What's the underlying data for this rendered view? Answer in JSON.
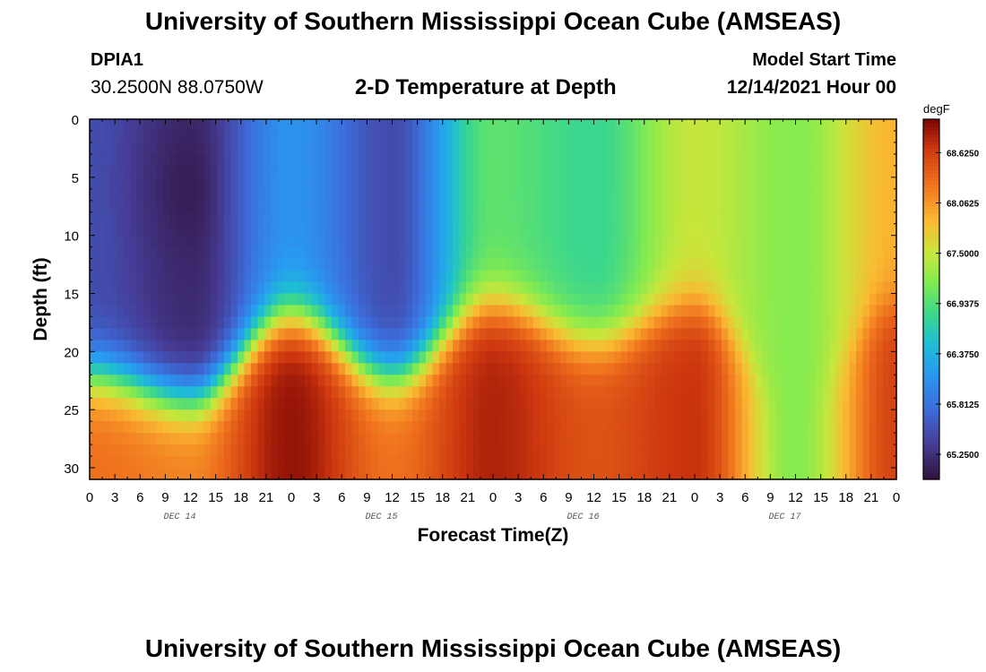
{
  "header": {
    "title": "University of Southern Mississippi Ocean Cube (AMSEAS)",
    "station": "DPIA1",
    "coords": "30.2500N  88.0750W",
    "subtitle": "2-D Temperature at Depth",
    "model_start_label": "Model Start Time",
    "model_start_value": "12/14/2021 Hour 00"
  },
  "footer": {
    "title": "University of Southern Mississippi Ocean Cube (AMSEAS)"
  },
  "chart_data": {
    "type": "heatmap",
    "title": "2-D Temperature at Depth",
    "xlabel": "Forecast Time(Z)",
    "ylabel": "Depth (ft)",
    "xlim": [
      0,
      96
    ],
    "ylim": [
      0,
      31
    ],
    "x_tick_labels": [
      "0",
      "3",
      "6",
      "9",
      "12",
      "15",
      "18",
      "21",
      "0",
      "3",
      "6",
      "9",
      "12",
      "15",
      "18",
      "21",
      "0",
      "3",
      "6",
      "9",
      "12",
      "15",
      "18",
      "21",
      "0",
      "3",
      "6",
      "9",
      "12",
      "15",
      "18",
      "21",
      "0"
    ],
    "day_labels": [
      "DEC 14",
      "DEC 15",
      "DEC 16",
      "DEC 17"
    ],
    "y_tick_labels": [
      "0",
      "5",
      "10",
      "15",
      "20",
      "25",
      "30"
    ],
    "y_ticks": [
      0,
      5,
      10,
      15,
      20,
      25,
      30
    ],
    "colorbar": {
      "unit": "degF",
      "min": 64.97,
      "max": 69.0,
      "tick_values": [
        65.25,
        65.8125,
        66.375,
        66.9375,
        67.5,
        68.0625,
        68.625
      ],
      "tick_labels": [
        "65.2500",
        "65.8125",
        "66.3750",
        "66.9375",
        "67.5000",
        "68.0625",
        "68.6250"
      ]
    },
    "grid": false,
    "legend": "colorbar-right",
    "description_series": {
      "surface_layer_profile_hours": [
        0,
        12,
        24,
        36,
        48,
        60,
        72,
        84,
        96
      ],
      "surface_layer_degF": [
        65.5,
        65.2,
        66.1,
        65.5,
        67.0,
        66.8,
        67.5,
        67.2,
        67.9
      ],
      "thermocline_depth_ft": [
        22,
        24,
        17,
        22,
        16,
        19,
        16,
        24,
        16
      ],
      "bottom_layer_degF": [
        68.3,
        68.2,
        68.9,
        68.3,
        68.8,
        68.5,
        68.7,
        67.2,
        68.6
      ]
    }
  }
}
